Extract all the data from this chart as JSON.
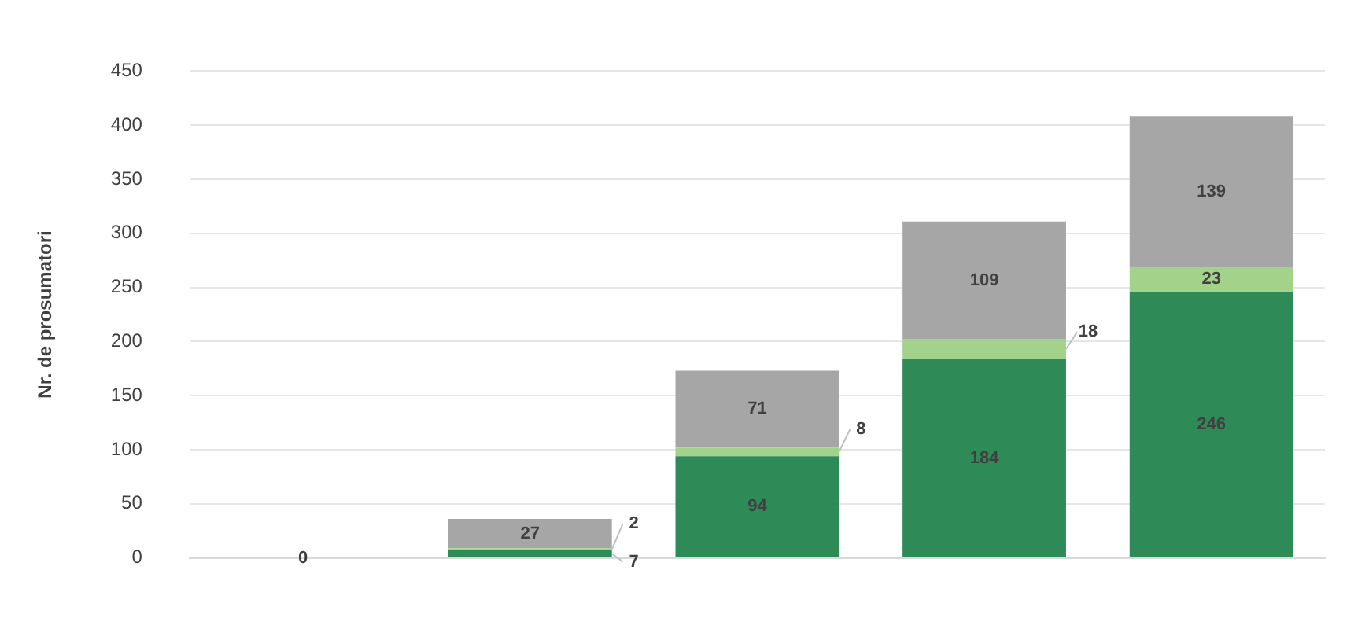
{
  "chart_data": {
    "type": "bar",
    "stacked": true,
    "ylabel": "Nr. de prosumatori",
    "categories": [
      null,
      null,
      null,
      null,
      null
    ],
    "series": [
      {
        "color": "#2e8b57",
        "values": [
          0,
          7,
          94,
          184,
          246
        ],
        "value_labels": [
          "0",
          "7",
          "94",
          "184",
          "246"
        ]
      },
      {
        "color": "#a3d38a",
        "values": [
          0,
          2,
          8,
          18,
          23
        ],
        "value_labels": [
          null,
          "2",
          "8",
          "18",
          "23"
        ]
      },
      {
        "color": "#a6a6a6",
        "values": [
          0,
          27,
          71,
          109,
          139
        ],
        "value_labels": [
          null,
          "27",
          "71",
          "109",
          "139"
        ]
      }
    ],
    "ylim": [
      0,
      450
    ],
    "yticks": [
      0,
      50,
      100,
      150,
      200,
      250,
      300,
      350,
      400,
      450
    ],
    "grid": "y",
    "legend": false
  }
}
